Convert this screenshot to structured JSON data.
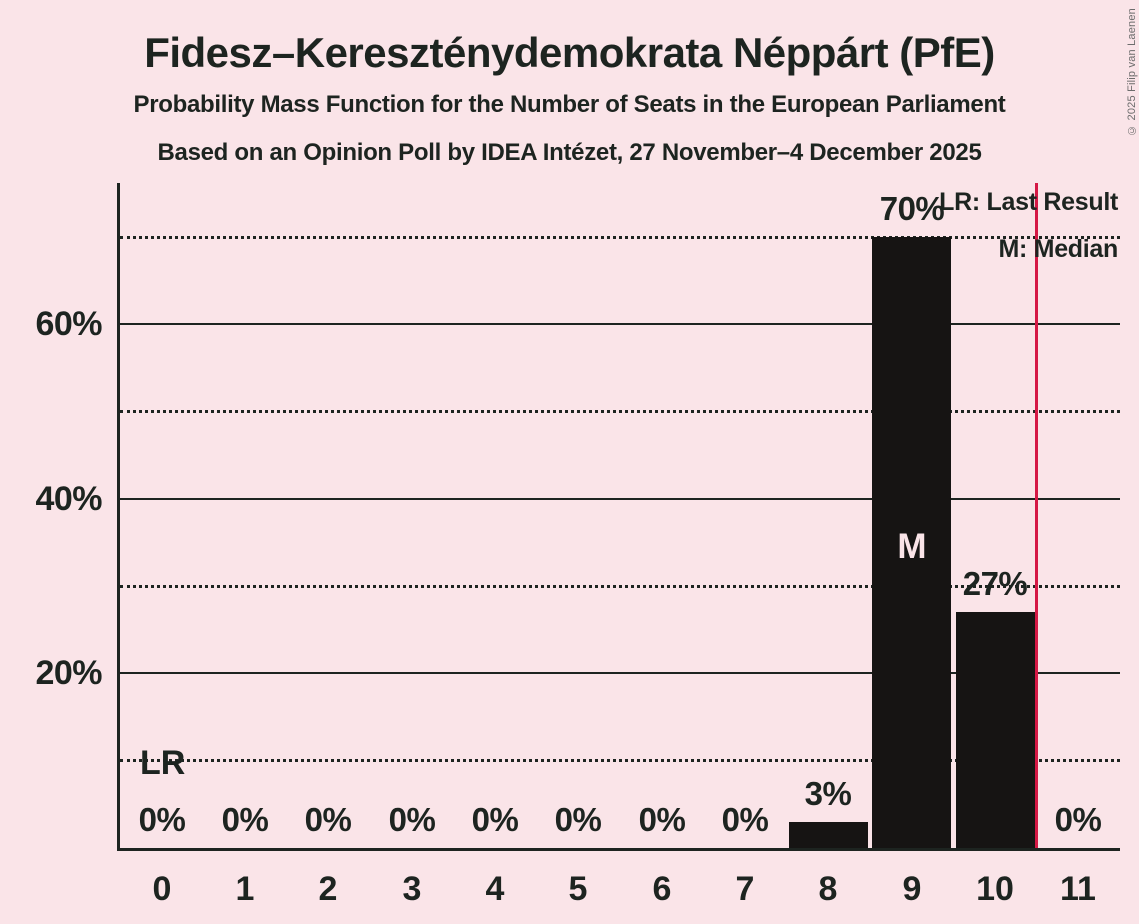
{
  "header": {
    "title": "Fidesz–Kereszténydemokrata Néppárt (PfE)",
    "subtitle_line1": "Probability Mass Function for the Number of Seats in the European Parliament",
    "subtitle_line2": "Based on an Opinion Poll by IDEA Intézet, 27 November–4 December 2025"
  },
  "copyright": "© 2025 Filip van Laenen",
  "legend": {
    "last_result": "LR: Last Result",
    "median": "M: Median"
  },
  "chart_data": {
    "type": "bar",
    "title": "Fidesz–Kereszténydemokrata Néppárt (PfE)",
    "xlabel": "",
    "ylabel": "",
    "categories": [
      "0",
      "1",
      "2",
      "3",
      "4",
      "5",
      "6",
      "7",
      "8",
      "9",
      "10",
      "11"
    ],
    "values": [
      0,
      0,
      0,
      0,
      0,
      0,
      0,
      0,
      3,
      70,
      27,
      0
    ],
    "bar_labels": [
      "0%",
      "0%",
      "0%",
      "0%",
      "0%",
      "0%",
      "0%",
      "0%",
      "3%",
      "70%",
      "27%",
      "0%"
    ],
    "ylim": [
      0,
      76.2
    ],
    "ytick_labels": [
      {
        "value": 20,
        "label": "20%"
      },
      {
        "value": 40,
        "label": "40%"
      },
      {
        "value": 60,
        "label": "60%"
      }
    ],
    "gridlines_solid": [
      20,
      40,
      60
    ],
    "gridlines_dotted": [
      10,
      30,
      50,
      70
    ],
    "grid": true,
    "legend_position": "top-right",
    "median_category": "9",
    "median_marker": "M",
    "last_result_marker": "LR",
    "last_result_x": 10.5,
    "colors": {
      "background": "#fae4e8",
      "bar": "#161413",
      "text": "#1d2420",
      "last_result_line": "#d51845",
      "median_text": "#fae4e8"
    }
  }
}
